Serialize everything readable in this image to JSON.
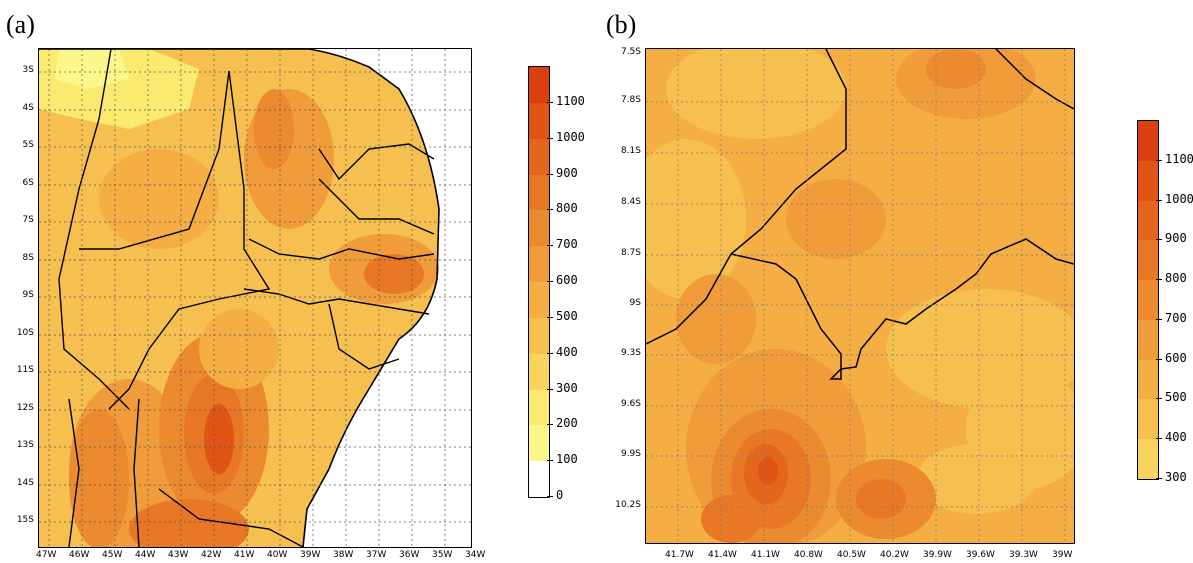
{
  "panels": [
    {
      "id": "a",
      "label": "(a)",
      "lat_labels": [
        "3S",
        "4S",
        "5S",
        "6S",
        "7S",
        "8S",
        "9S",
        "10S",
        "11S",
        "12S",
        "13S",
        "14S",
        "15S"
      ],
      "lon_labels": [
        "47W",
        "46W",
        "45W",
        "44W",
        "43W",
        "42W",
        "41W",
        "40W",
        "39W",
        "38W",
        "37W",
        "36W",
        "35W",
        "34W"
      ],
      "colorbar": {
        "labels": [
          "1100",
          "1000",
          "900",
          "800",
          "700",
          "600",
          "500",
          "400",
          "300",
          "200",
          "100",
          "0"
        ],
        "colors": [
          "#d84010",
          "#e05416",
          "#e4661c",
          "#e87826",
          "#ec8a30",
          "#f09c3a",
          "#f4ae44",
          "#f6c050",
          "#f8d45e",
          "#faea70",
          "#fcf78a",
          "#ffffff"
        ]
      }
    },
    {
      "id": "b",
      "label": "(b)",
      "lat_labels": [
        "7.5S",
        "7.8S",
        "8.1S",
        "8.4S",
        "8.7S",
        "9S",
        "9.3S",
        "9.6S",
        "9.9S",
        "10.2S"
      ],
      "lon_labels": [
        "41.7W",
        "41.4W",
        "41.1W",
        "40.8W",
        "40.5W",
        "40.2W",
        "39.9W",
        "39.6W",
        "39.3W",
        "39W"
      ],
      "colorbar": {
        "labels": [
          "1100",
          "1000",
          "900",
          "800",
          "700",
          "600",
          "500",
          "400",
          "300"
        ],
        "colors": [
          "#d84010",
          "#e05416",
          "#e4661c",
          "#e87826",
          "#ec8a30",
          "#f09c3a",
          "#f4ae44",
          "#f6c050",
          "#f8d45e"
        ]
      }
    }
  ]
}
